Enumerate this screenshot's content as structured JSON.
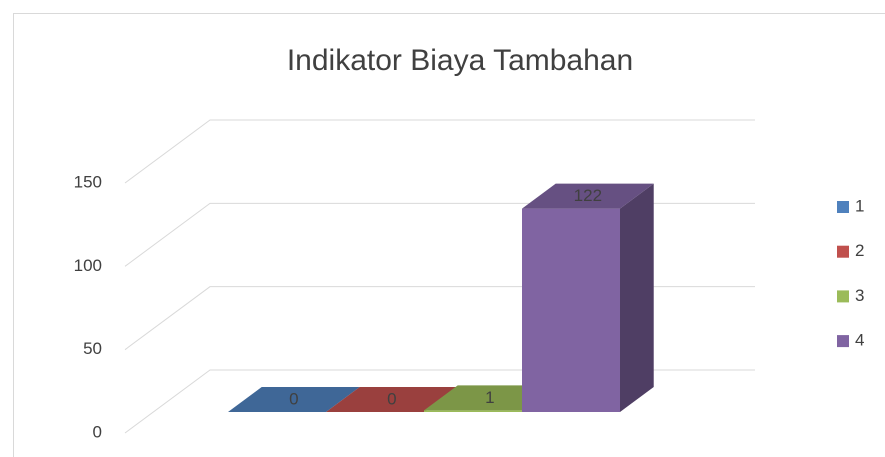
{
  "chart_data": {
    "type": "bar3d",
    "title": "Indikator Biaya Tambahan",
    "categories": [
      null
    ],
    "series": [
      {
        "name": "1",
        "color": "#4f81bd",
        "values": [
          0
        ]
      },
      {
        "name": "2",
        "color": "#c0504d",
        "values": [
          0
        ]
      },
      {
        "name": "3",
        "color": "#9bbb59",
        "values": [
          1
        ]
      },
      {
        "name": "4",
        "color": "#8064a2",
        "values": [
          122
        ]
      }
    ],
    "ylim": [
      0,
      150
    ],
    "yticks": [
      0,
      50,
      100,
      150
    ],
    "grid": true,
    "legend": "right"
  }
}
